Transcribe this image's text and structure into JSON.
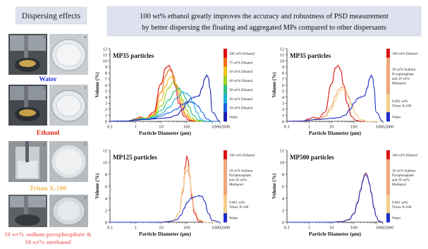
{
  "headline": {
    "line1": "100 wt% ethanol greatly improves the accuracy and robustness of PSD measurement",
    "line2": "by better dispersing the floating and aggregated MPs compared to other dispersants"
  },
  "left_panel": {
    "title": "Dispersing effects",
    "photo_letters": [
      "a",
      "b",
      "d",
      "e",
      "g",
      "h",
      "j",
      "k"
    ],
    "captions": [
      {
        "lines": [
          "Water"
        ],
        "color": "#2233dd"
      },
      {
        "lines": [
          "Ethanol"
        ],
        "color": "#dd2211"
      },
      {
        "lines": [
          "Triton X-100"
        ],
        "color": "#eebb55"
      },
      {
        "lines": [
          "10 wt% sodium pyrophosphate &",
          "10 wt% methanol"
        ],
        "color": "#f08080"
      }
    ]
  },
  "colors": {
    "water": "#1f2fc9",
    "ethanol": "#d81414",
    "sodium": "#f1a67a",
    "triton": "#f4ce8a",
    "headline_bg": "#dde2ee"
  },
  "chart_data": [
    {
      "type": "line",
      "title": "MP35 particles",
      "xlabel": "Particle Diameter (μm)",
      "ylabel": "Volume (%)",
      "x_scale": "log",
      "xlim": [
        0.1,
        2000
      ],
      "ylim": [
        0,
        12
      ],
      "x_ticks": [
        "0.1",
        "1",
        "10",
        "100",
        "10002000"
      ],
      "y_ticks": [
        "0",
        "1",
        "2",
        "3",
        "4",
        "5",
        "6",
        "7",
        "8",
        "9",
        "10",
        "11",
        "12"
      ],
      "legend": [
        {
          "label": "100 wt% Ethanol",
          "color": "#e01010"
        },
        {
          "label": "75 wt% Ethanol",
          "color": "#f07010"
        },
        {
          "label": "50 wt% Ethanol",
          "color": "#f0c020"
        },
        {
          "label": "40 wt% Ethanol",
          "color": "#9cd020"
        },
        {
          "label": "30 wt% Ethanol",
          "color": "#30c080"
        },
        {
          "label": "20 wt% Ethanol",
          "color": "#20b0d8"
        },
        {
          "label": "10 wt% Ethanol",
          "color": "#1a60e0"
        },
        {
          "label": "Water",
          "color": "#1a20b0"
        }
      ],
      "series": [
        {
          "name": "100 wt% Ethanol",
          "color": "#e01010",
          "x": [
            0.1,
            0.5,
            1,
            1.5,
            2.5,
            5,
            10,
            15,
            20,
            25,
            35,
            50,
            80,
            120,
            200,
            300,
            500,
            1000,
            2000
          ],
          "y": [
            0,
            0.05,
            0.4,
            0.7,
            0.5,
            1.5,
            6.2,
            8.8,
            9.2,
            8.5,
            6.0,
            3.0,
            0.8,
            0.2,
            0,
            0,
            0,
            0,
            0
          ]
        },
        {
          "name": "75 wt% Ethanol",
          "color": "#f07010",
          "x": [
            0.1,
            0.5,
            1,
            1.5,
            2.5,
            5,
            10,
            15,
            20,
            25,
            30,
            40,
            60,
            90,
            150,
            250,
            500,
            1000,
            2000
          ],
          "y": [
            0,
            0.05,
            0.3,
            0.6,
            0.5,
            1.2,
            4.8,
            7.5,
            8.5,
            8.3,
            7.6,
            5.8,
            3.0,
            1.0,
            0.2,
            0,
            0,
            0,
            0
          ]
        },
        {
          "name": "50 wt% Ethanol",
          "color": "#f0c020",
          "x": [
            0.1,
            0.5,
            1,
            2,
            3,
            5,
            10,
            15,
            20,
            25,
            30,
            40,
            60,
            90,
            150,
            250,
            500,
            1000,
            2000
          ],
          "y": [
            0,
            0.05,
            0.3,
            0.6,
            0.5,
            1.0,
            3.5,
            5.8,
            7.0,
            7.4,
            7.1,
            6.0,
            3.5,
            1.3,
            0.3,
            0.05,
            0,
            0,
            0
          ]
        },
        {
          "name": "40 wt% Ethanol",
          "color": "#9cd020",
          "x": [
            0.1,
            0.5,
            1,
            2,
            3,
            5,
            10,
            20,
            30,
            40,
            50,
            70,
            100,
            150,
            250,
            500,
            1000,
            2000
          ],
          "y": [
            0,
            0.05,
            0.3,
            0.5,
            0.5,
            0.9,
            2.5,
            5.5,
            6.5,
            6.0,
            5.2,
            3.5,
            1.8,
            0.6,
            0.1,
            0,
            0,
            0
          ]
        },
        {
          "name": "30 wt% Ethanol",
          "color": "#30c080",
          "x": [
            0.1,
            0.5,
            1,
            2,
            3,
            5,
            10,
            20,
            35,
            50,
            70,
            90,
            120,
            180,
            300,
            500,
            1000,
            2000
          ],
          "y": [
            0,
            0.05,
            0.3,
            0.5,
            0.4,
            0.8,
            1.8,
            3.5,
            5.0,
            5.5,
            4.8,
            3.8,
            2.5,
            1.0,
            0.2,
            0,
            0,
            0
          ]
        },
        {
          "name": "20 wt% Ethanol",
          "color": "#20b0d8",
          "x": [
            0.1,
            0.5,
            1,
            2,
            3,
            5,
            10,
            20,
            40,
            70,
            100,
            130,
            170,
            250,
            350,
            500,
            1000,
            2000
          ],
          "y": [
            0,
            0.05,
            0.2,
            0.4,
            0.4,
            0.6,
            1.2,
            2.3,
            3.8,
            4.8,
            4.6,
            4.2,
            3.2,
            1.5,
            0.4,
            0.05,
            0,
            0
          ]
        },
        {
          "name": "10 wt% Ethanol",
          "color": "#1a60e0",
          "x": [
            0.1,
            0.5,
            1,
            2,
            3,
            5,
            10,
            20,
            40,
            70,
            100,
            140,
            200,
            280,
            400,
            600,
            1000,
            2000
          ],
          "y": [
            0,
            0.05,
            0.2,
            0.3,
            0.3,
            0.5,
            0.9,
            1.4,
            2.0,
            2.8,
            3.2,
            3.2,
            3.0,
            2.5,
            1.5,
            0.4,
            0,
            0
          ]
        },
        {
          "name": "Water",
          "color": "#1a20b0",
          "x": [
            0.1,
            0.5,
            1,
            2,
            3,
            5,
            10,
            20,
            40,
            70,
            100,
            150,
            200,
            300,
            400,
            500,
            600,
            700,
            800,
            1000,
            2000
          ],
          "y": [
            0,
            0.05,
            0.2,
            0.3,
            0.3,
            0.4,
            0.5,
            0.6,
            1.0,
            2.0,
            3.0,
            3.8,
            4.0,
            4.2,
            5.5,
            7.0,
            7.6,
            7.2,
            5.5,
            1.5,
            0
          ]
        }
      ]
    },
    {
      "type": "line",
      "title": "MP35 particles",
      "xlabel": "Particle Diameter (μm)",
      "ylabel": "Volume (%)",
      "x_scale": "log",
      "xlim": [
        0.1,
        2000
      ],
      "ylim": [
        0,
        12
      ],
      "x_ticks": [
        "0.1",
        "1",
        "10",
        "100",
        "10002000"
      ],
      "y_ticks": [
        "0",
        "1",
        "2",
        "3",
        "4",
        "5",
        "6",
        "7",
        "8",
        "9",
        "10",
        "11",
        "12"
      ],
      "legend": [
        {
          "label": "100 wt% Ethanol",
          "color": "#d81414"
        },
        {
          "label": "10 wt% Sodium Pyrophosphate and 10 wt% Methanol",
          "color": "#f1a67a"
        },
        {
          "label": "0.001 wt% Triton X-100",
          "color": "#f4ce8a"
        },
        {
          "label": "Water",
          "color": "#1f2fc9"
        }
      ],
      "series": [
        {
          "name": "100 wt% Ethanol",
          "color": "#d81414",
          "x": [
            0.1,
            0.5,
            1,
            1.5,
            2.5,
            5,
            10,
            15,
            20,
            25,
            35,
            50,
            80,
            120,
            200,
            300,
            500,
            1000,
            2000
          ],
          "y": [
            0,
            0.05,
            0.4,
            0.7,
            0.5,
            1.5,
            6.2,
            8.8,
            9.2,
            8.5,
            6.0,
            3.0,
            0.8,
            0.2,
            0,
            0,
            0,
            0,
            0
          ]
        },
        {
          "name": "10 wt% Sodium Pyrophosphate and 10 wt% Methanol",
          "color": "#f1a67a",
          "x": [
            0.1,
            0.5,
            1,
            2,
            3,
            5,
            10,
            15,
            20,
            30,
            40,
            60,
            80,
            120,
            200,
            400,
            1000,
            2000
          ],
          "y": [
            0,
            0.05,
            0.2,
            0.4,
            0.4,
            0.9,
            2.5,
            4.2,
            5.2,
            5.7,
            5.4,
            4.0,
            2.8,
            1.2,
            0.3,
            0,
            0,
            0
          ]
        },
        {
          "name": "0.001 wt% Triton X-100",
          "color": "#f4ce8a",
          "x": [
            0.1,
            0.5,
            1,
            2,
            3,
            5,
            10,
            15,
            20,
            30,
            40,
            60,
            80,
            120,
            200,
            400,
            1000,
            2000
          ],
          "y": [
            0,
            0.05,
            0.2,
            0.3,
            0.3,
            0.7,
            2.0,
            3.5,
            4.5,
            5.3,
            5.0,
            3.8,
            2.6,
            1.2,
            0.3,
            0,
            0,
            0
          ]
        },
        {
          "name": "Water",
          "color": "#1f2fc9",
          "x": [
            0.1,
            0.5,
            1,
            2,
            3,
            5,
            10,
            20,
            40,
            70,
            100,
            150,
            200,
            300,
            400,
            500,
            600,
            700,
            800,
            1000,
            2000
          ],
          "y": [
            0,
            0.05,
            0.2,
            0.3,
            0.3,
            0.4,
            0.5,
            0.6,
            1.0,
            2.0,
            3.0,
            3.8,
            4.0,
            4.2,
            5.5,
            7.0,
            7.6,
            7.2,
            5.5,
            1.5,
            0
          ]
        }
      ]
    },
    {
      "type": "line",
      "title": "MP125 particles",
      "xlabel": "Particle Diameter (μm)",
      "ylabel": "Volume (%)",
      "x_scale": "log",
      "xlim": [
        0.1,
        2000
      ],
      "ylim": [
        0,
        12
      ],
      "x_ticks": [
        "0.1",
        "1",
        "10",
        "100",
        "10002000"
      ],
      "y_ticks": [
        "0",
        "2",
        "4",
        "6",
        "8",
        "10",
        "12"
      ],
      "legend": [
        {
          "label": "100 wt% Ethanol",
          "color": "#d81414"
        },
        {
          "label": "10 wt% Sodium Pyrophosphate and 10 wt% Methanol",
          "color": "#f1a67a"
        },
        {
          "label": "0.001 wt% Triton X-100",
          "color": "#f4ce8a"
        },
        {
          "label": "Water",
          "color": "#1f2fc9"
        }
      ],
      "series": [
        {
          "name": "100 wt% Ethanol",
          "color": "#d81414",
          "x": [
            0.1,
            10,
            30,
            50,
            70,
            90,
            100,
            110,
            130,
            160,
            200,
            300,
            500,
            2000
          ],
          "y": [
            0,
            0,
            0.2,
            1.5,
            5.0,
            9.5,
            11.0,
            10.5,
            8.0,
            4.0,
            1.5,
            0.2,
            0,
            0
          ]
        },
        {
          "name": "10 wt% Sodium Pyrophosphate and 10 wt% Methanol",
          "color": "#f1a67a",
          "x": [
            0.1,
            10,
            30,
            50,
            70,
            90,
            110,
            130,
            160,
            200,
            300,
            500,
            2000
          ],
          "y": [
            0,
            0,
            0.2,
            1.5,
            5.0,
            8.3,
            8.8,
            7.5,
            4.5,
            2.0,
            0.5,
            0,
            0
          ]
        },
        {
          "name": "0.001 wt% Triton X-100",
          "color": "#f4ce8a",
          "x": [
            0.1,
            10,
            30,
            50,
            70,
            90,
            110,
            130,
            160,
            200,
            300,
            500,
            2000
          ],
          "y": [
            0,
            0,
            0.2,
            1.5,
            5.5,
            9.0,
            9.5,
            8.0,
            4.8,
            2.0,
            0.5,
            0,
            0
          ]
        },
        {
          "name": "Water",
          "color": "#1f2fc9",
          "x": [
            0.1,
            10,
            20,
            40,
            60,
            80,
            100,
            150,
            200,
            300,
            400,
            500,
            700,
            1000,
            2000
          ],
          "y": [
            0,
            0,
            0.1,
            0.4,
            1.2,
            2.3,
            3.2,
            4.0,
            4.2,
            4.4,
            4.3,
            3.5,
            1.5,
            0.3,
            0
          ]
        }
      ]
    },
    {
      "type": "line",
      "title": "MP500 particles",
      "xlabel": "Particle Diameter (μm)",
      "ylabel": "Volume (%)",
      "x_scale": "log",
      "xlim": [
        0.1,
        2000
      ],
      "ylim": [
        0,
        12
      ],
      "x_ticks": [
        "0.1",
        "1",
        "10",
        "100",
        "10002000"
      ],
      "y_ticks": [
        "0",
        "2",
        "4",
        "6",
        "8",
        "10",
        "12"
      ],
      "legend": [
        {
          "label": "100 wt% Ethanol",
          "color": "#d81414"
        },
        {
          "label": "10 wt% Sodium Pyrophosphate and 10 wt% Methanol",
          "color": "#f1a67a"
        },
        {
          "label": "0.001 wt% Triton X-100",
          "color": "#f4ce8a"
        },
        {
          "label": "Water",
          "color": "#1f2fc9"
        }
      ],
      "series": [
        {
          "name": "100 wt% Ethanol",
          "color": "#d81414",
          "x": [
            0.1,
            10,
            30,
            60,
            100,
            150,
            200,
            250,
            300,
            350,
            400,
            500,
            600,
            800,
            1000,
            1300,
            2000
          ],
          "y": [
            0,
            0,
            0.1,
            0.5,
            1.5,
            3.5,
            5.5,
            7.0,
            8.0,
            8.2,
            7.8,
            6.5,
            5.0,
            2.5,
            1.0,
            0.2,
            0
          ]
        },
        {
          "name": "10 wt% Sodium Pyrophosphate and 10 wt% Methanol",
          "color": "#f1a67a",
          "x": [
            0.1,
            10,
            30,
            60,
            100,
            150,
            200,
            250,
            300,
            350,
            400,
            500,
            600,
            800,
            1000,
            1300,
            2000
          ],
          "y": [
            0,
            0,
            0.1,
            0.5,
            1.5,
            3.4,
            5.4,
            6.9,
            7.9,
            8.1,
            7.7,
            6.4,
            5.0,
            2.5,
            1.0,
            0.2,
            0
          ]
        },
        {
          "name": "0.001 wt% Triton X-100",
          "color": "#f4ce8a",
          "x": [
            0.1,
            10,
            30,
            60,
            100,
            150,
            200,
            250,
            300,
            350,
            400,
            500,
            600,
            800,
            1000,
            1300,
            2000
          ],
          "y": [
            0,
            0,
            0.1,
            0.5,
            1.5,
            3.5,
            5.4,
            6.9,
            7.9,
            8.1,
            7.7,
            6.5,
            5.0,
            2.5,
            1.0,
            0.2,
            0
          ]
        },
        {
          "name": "Water",
          "color": "#1f2fc9",
          "x": [
            0.1,
            10,
            30,
            60,
            100,
            150,
            200,
            250,
            300,
            350,
            400,
            500,
            600,
            800,
            1000,
            1300,
            2000
          ],
          "y": [
            0,
            0,
            0.1,
            0.4,
            1.4,
            3.3,
            5.3,
            6.8,
            7.8,
            8.0,
            7.6,
            6.4,
            4.9,
            2.4,
            1.0,
            0.2,
            0
          ]
        }
      ]
    }
  ]
}
